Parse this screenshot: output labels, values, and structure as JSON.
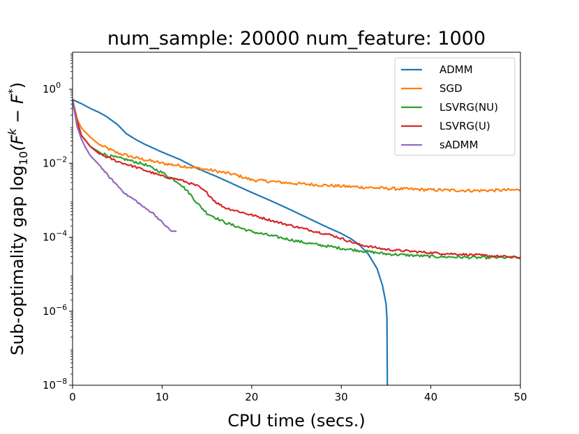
{
  "chart_data": {
    "type": "line",
    "title": "num_sample: 20000 num_feature: 1000",
    "xlabel": "CPU time (secs.)",
    "ylabel": "Sub-optimality gap log",
    "ylabel_sub": "10",
    "ylabel_expr": "(F",
    "ylabel_sup_k": "k",
    "ylabel_minus": " − F",
    "ylabel_sup_star": "*",
    "ylabel_close": ")",
    "xlim": [
      0,
      50
    ],
    "ylim_log10": [
      -8,
      1
    ],
    "yscale": "log",
    "x_ticks": [
      0,
      10,
      20,
      30,
      40,
      50
    ],
    "x_tick_labels": [
      "0",
      "10",
      "20",
      "30",
      "40",
      "50"
    ],
    "y_ticks_log10": [
      -8,
      -6,
      -4,
      -2,
      0
    ],
    "y_tick_labels": [
      {
        "base": "10",
        "exp": "−8"
      },
      {
        "base": "10",
        "exp": "−6"
      },
      {
        "base": "10",
        "exp": "−4"
      },
      {
        "base": "10",
        "exp": "−2"
      },
      {
        "base": "10",
        "exp": "0"
      }
    ],
    "legend_position": "top-right",
    "series": [
      {
        "name": "ADMM",
        "color": "#1f77b4",
        "noise": 0,
        "points": [
          [
            0,
            -0.28
          ],
          [
            1,
            -0.39
          ],
          [
            2,
            -0.52
          ],
          [
            3,
            -0.63
          ],
          [
            3.8,
            -0.74
          ],
          [
            5,
            -0.95
          ],
          [
            6,
            -1.2
          ],
          [
            7,
            -1.35
          ],
          [
            8,
            -1.48
          ],
          [
            10,
            -1.7
          ],
          [
            12,
            -1.9
          ],
          [
            14,
            -2.15
          ],
          [
            16,
            -2.35
          ],
          [
            18,
            -2.57
          ],
          [
            20,
            -2.79
          ],
          [
            22,
            -3.0
          ],
          [
            24,
            -3.22
          ],
          [
            26,
            -3.45
          ],
          [
            28,
            -3.68
          ],
          [
            30,
            -3.9
          ],
          [
            31,
            -4.03
          ],
          [
            32,
            -4.2
          ],
          [
            33,
            -4.45
          ],
          [
            34,
            -4.85
          ],
          [
            34.6,
            -5.3
          ],
          [
            35,
            -5.8
          ],
          [
            35.1,
            -6.2
          ],
          [
            35.15,
            -8.0
          ]
        ]
      },
      {
        "name": "SGD",
        "color": "#ff7f0e",
        "noise": 0.04,
        "points": [
          [
            0,
            -0.28
          ],
          [
            0.5,
            -0.8
          ],
          [
            1,
            -1.05
          ],
          [
            2,
            -1.3
          ],
          [
            3,
            -1.5
          ],
          [
            5,
            -1.72
          ],
          [
            7,
            -1.85
          ],
          [
            10,
            -2.0
          ],
          [
            13,
            -2.1
          ],
          [
            15,
            -2.17
          ],
          [
            18,
            -2.3
          ],
          [
            20,
            -2.45
          ],
          [
            25,
            -2.55
          ],
          [
            30,
            -2.62
          ],
          [
            35,
            -2.68
          ],
          [
            40,
            -2.72
          ],
          [
            45,
            -2.74
          ],
          [
            50,
            -2.72
          ]
        ]
      },
      {
        "name": "LSVRG(NU)",
        "color": "#2ca02c",
        "noise": 0.035,
        "points": [
          [
            0,
            -0.28
          ],
          [
            0.5,
            -0.85
          ],
          [
            1,
            -1.25
          ],
          [
            2,
            -1.55
          ],
          [
            3,
            -1.7
          ],
          [
            4,
            -1.8
          ],
          [
            6,
            -1.9
          ],
          [
            8,
            -2.03
          ],
          [
            10,
            -2.25
          ],
          [
            12,
            -2.55
          ],
          [
            13,
            -2.8
          ],
          [
            14,
            -3.1
          ],
          [
            15,
            -3.35
          ],
          [
            17,
            -3.6
          ],
          [
            20,
            -3.85
          ],
          [
            23,
            -4.0
          ],
          [
            26,
            -4.15
          ],
          [
            30,
            -4.3
          ],
          [
            35,
            -4.45
          ],
          [
            40,
            -4.52
          ],
          [
            45,
            -4.55
          ],
          [
            50,
            -4.55
          ]
        ]
      },
      {
        "name": "LSVRG(U)",
        "color": "#d62728",
        "noise": 0.03,
        "points": [
          [
            0,
            -0.28
          ],
          [
            0.5,
            -0.85
          ],
          [
            1,
            -1.25
          ],
          [
            2,
            -1.55
          ],
          [
            3,
            -1.75
          ],
          [
            5,
            -1.95
          ],
          [
            7,
            -2.1
          ],
          [
            10,
            -2.35
          ],
          [
            12,
            -2.45
          ],
          [
            14,
            -2.62
          ],
          [
            15,
            -2.8
          ],
          [
            16,
            -3.05
          ],
          [
            17,
            -3.2
          ],
          [
            20,
            -3.4
          ],
          [
            23,
            -3.6
          ],
          [
            26,
            -3.78
          ],
          [
            29,
            -3.95
          ],
          [
            32,
            -4.2
          ],
          [
            35,
            -4.33
          ],
          [
            40,
            -4.42
          ],
          [
            45,
            -4.48
          ],
          [
            50,
            -4.55
          ]
        ]
      },
      {
        "name": "sADMM",
        "color": "#9467bd",
        "noise": 0.025,
        "points": [
          [
            0,
            -0.28
          ],
          [
            0.5,
            -1.0
          ],
          [
            1,
            -1.35
          ],
          [
            1.5,
            -1.6
          ],
          [
            2,
            -1.8
          ],
          [
            3,
            -2.05
          ],
          [
            4,
            -2.35
          ],
          [
            5,
            -2.6
          ],
          [
            6,
            -2.85
          ],
          [
            7,
            -3.0
          ],
          [
            8,
            -3.2
          ],
          [
            9,
            -3.35
          ],
          [
            10,
            -3.6
          ],
          [
            11,
            -3.83
          ],
          [
            11.6,
            -3.85
          ]
        ]
      }
    ]
  }
}
